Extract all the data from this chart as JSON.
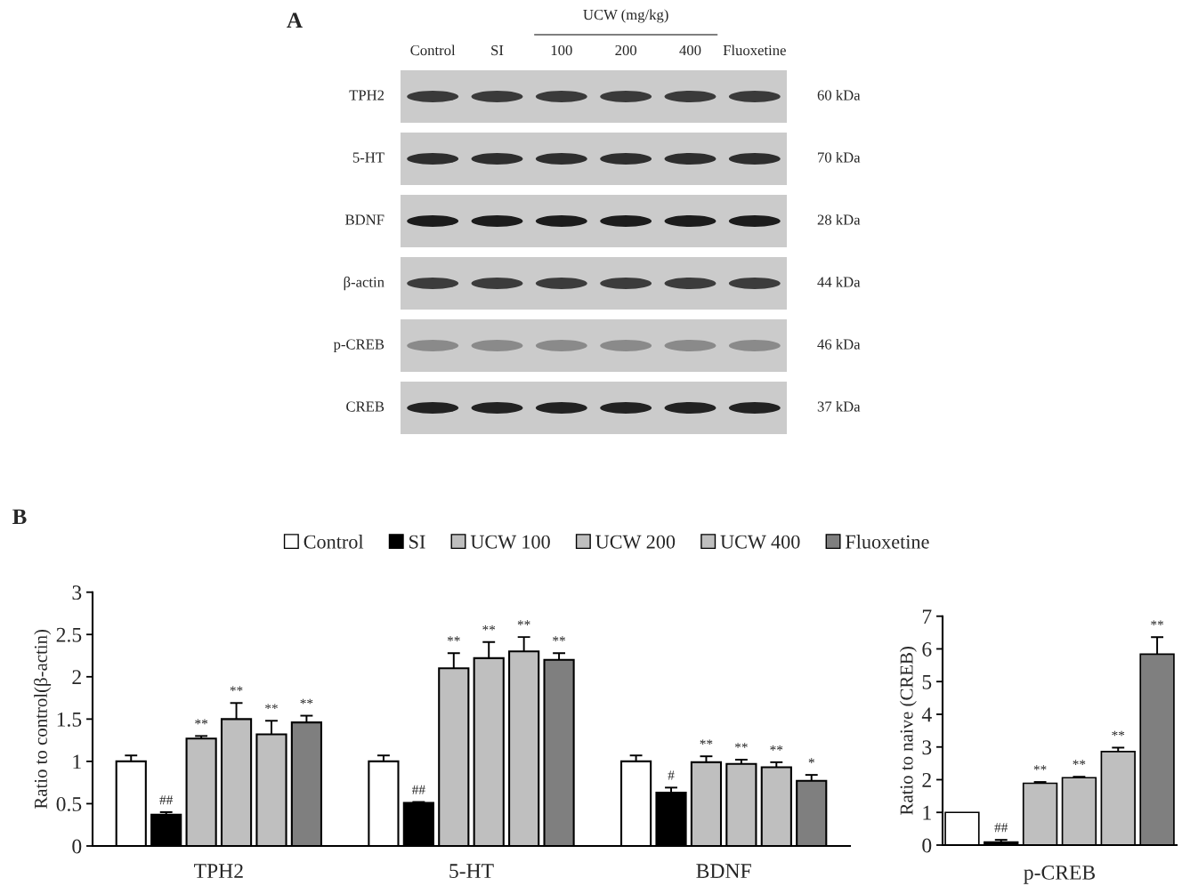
{
  "chart_data": [
    {
      "type": "other",
      "title": "A",
      "categories": [
        "Control",
        "SI",
        "100",
        "200",
        "400",
        "Fluoxetine"
      ],
      "y_categories": [
        "TPH2",
        "5-HT",
        "BDNF",
        "β-actin",
        "p-CREB",
        "CREB"
      ],
      "y2_categories": [
        "60 kDa",
        "70 kDa",
        "28 kDa",
        "44 kDa",
        "46 kDa",
        "37 kDa"
      ],
      "annotations": [
        "UCW (mg/kg)"
      ]
    },
    {
      "type": "bar",
      "title": "B",
      "categories": [
        "TPH2",
        "5-HT",
        "BDNF"
      ],
      "ylabel": "Ratio to control(β-actin)",
      "ylim": [
        0,
        3
      ],
      "yticks": [
        0,
        0.5,
        1,
        1.5,
        2,
        2.5,
        3
      ],
      "legend": "top",
      "series": [
        {
          "name": "Control",
          "color": "#ffffff",
          "values": [
            1,
            1,
            1
          ],
          "errors": [
            0.07,
            0.07,
            0.07
          ]
        },
        {
          "name": "SI",
          "color": "#000000",
          "values": [
            0.37,
            0.51,
            0.63
          ],
          "errors": [
            0.03,
            0.01,
            0.06
          ],
          "value_labels": [
            "##",
            "##",
            "#"
          ]
        },
        {
          "name": "UCW 100",
          "color": "#bfbfbf",
          "values": [
            1.27,
            2.1,
            0.99
          ],
          "errors": [
            0.03,
            0.18,
            0.07
          ],
          "value_labels": [
            "**",
            "**",
            "**"
          ]
        },
        {
          "name": "UCW 200",
          "color": "#bfbfbf",
          "values": [
            1.5,
            2.22,
            0.97
          ],
          "errors": [
            0.19,
            0.19,
            0.05
          ],
          "value_labels": [
            "**",
            "**",
            "**"
          ]
        },
        {
          "name": "UCW 400",
          "color": "#bfbfbf",
          "values": [
            1.32,
            2.3,
            0.93
          ],
          "errors": [
            0.16,
            0.17,
            0.06
          ],
          "value_labels": [
            "**",
            "**",
            "**"
          ]
        },
        {
          "name": "Fluoxetine",
          "color": "#7f7f7f",
          "values": [
            1.46,
            2.2,
            0.77
          ],
          "errors": [
            0.08,
            0.08,
            0.07
          ],
          "value_labels": [
            "**",
            "**",
            "*"
          ]
        }
      ]
    },
    {
      "type": "bar",
      "categories": [
        null,
        null,
        null,
        null,
        null,
        null
      ],
      "xlabel": "p-CREB",
      "ylabel": "Ratio to naive (CREB)",
      "ylim": [
        0,
        7
      ],
      "yticks": [
        0,
        1,
        2,
        3,
        4,
        5,
        6,
        7
      ],
      "values": [
        1,
        0.09,
        1.89,
        2.06,
        2.86,
        5.84
      ],
      "colors": [
        "#ffffff",
        "#000000",
        "#bfbfbf",
        "#bfbfbf",
        "#bfbfbf",
        "#7f7f7f"
      ],
      "errors": [
        null,
        0.07,
        0.04,
        0.03,
        0.12,
        0.52
      ],
      "value_labels": [
        null,
        "##",
        "**",
        "**",
        "**",
        "**"
      ]
    }
  ]
}
